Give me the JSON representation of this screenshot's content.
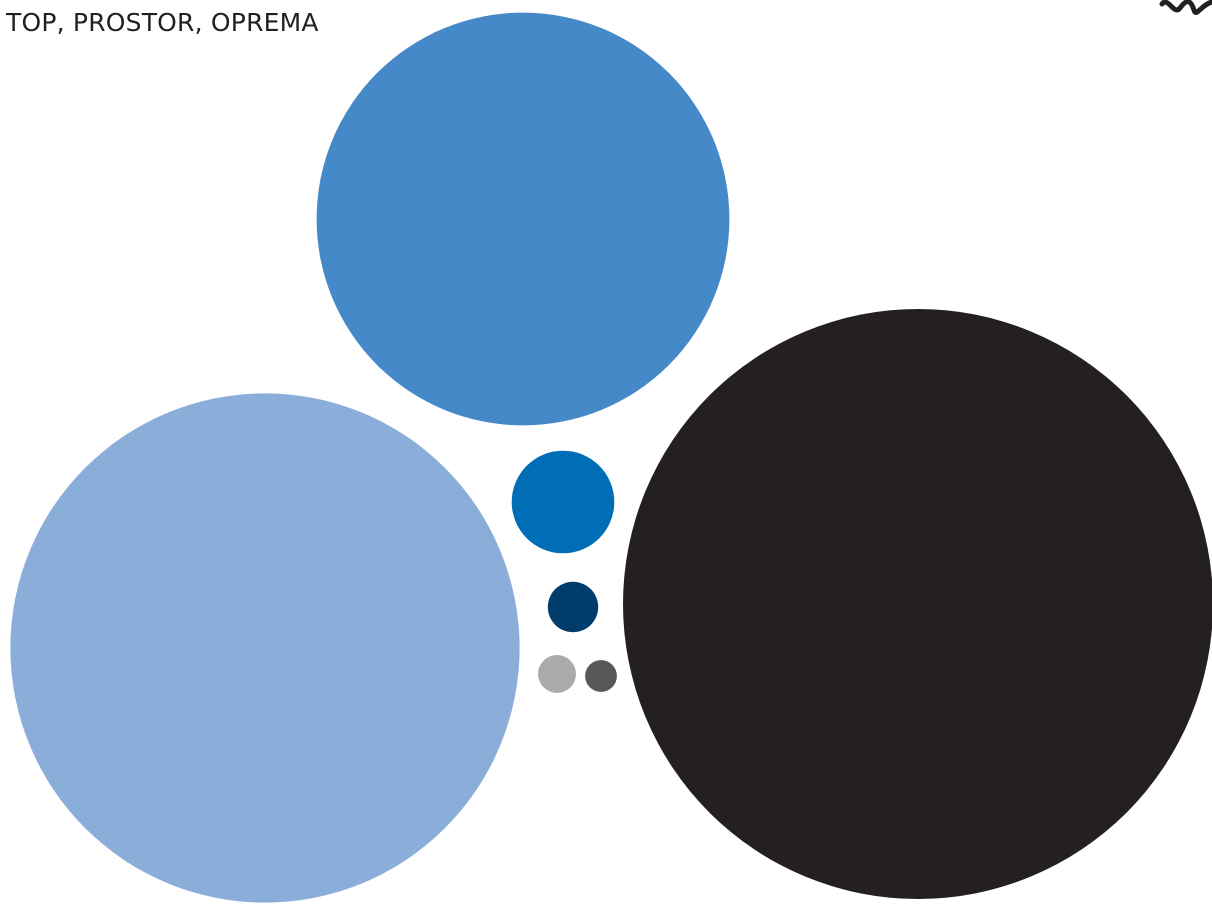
{
  "chart_data": {
    "type": "bubble",
    "title": "TOP, PROSTOR, OPREMA",
    "xlabel": "",
    "ylabel": "",
    "grid": false,
    "legend": "none",
    "bubbles": [
      {
        "value": 47.0,
        "color": "#4689c8"
      },
      {
        "value": 71.5,
        "color": "#8aadd9"
      },
      {
        "value": 96.0,
        "color": "#242021"
      },
      {
        "value": 2.9,
        "color": "#006eb6"
      },
      {
        "value": 0.7,
        "color": "#003d6d"
      },
      {
        "value": 0.4,
        "color": "#aaaaad"
      },
      {
        "value": 0.28,
        "color": "#58585a"
      }
    ]
  }
}
